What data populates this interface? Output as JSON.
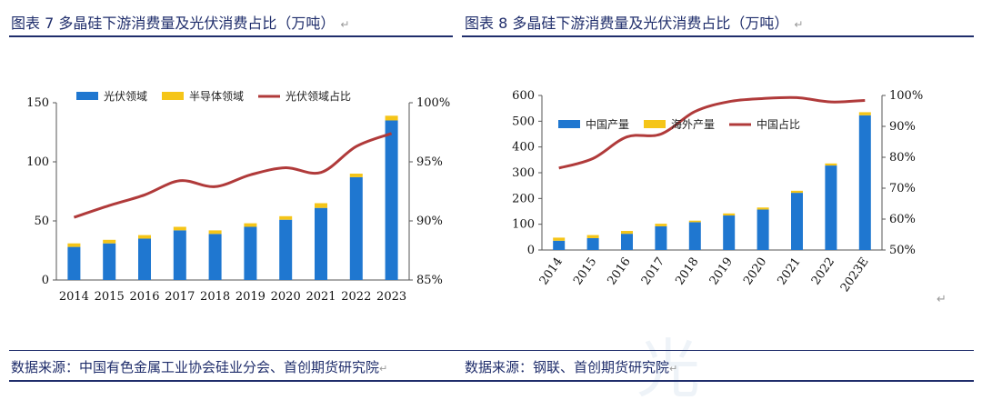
{
  "titles": {
    "left": "图表 7 多晶硅下游消费量及光伏消费占比（万吨）",
    "right": "图表 8 多晶硅下游消费量及光伏消费占比（万吨）",
    "mark": "↵"
  },
  "sources": {
    "left": "数据来源：中国有色金属工业协会硅业分会、首创期货研究院",
    "right": "数据来源：钢联、首创期货研究院"
  },
  "watermark": "光",
  "chart_data": [
    {
      "type": "bar",
      "stacked": true,
      "categories": [
        "2014",
        "2015",
        "2016",
        "2017",
        "2018",
        "2019",
        "2020",
        "2021",
        "2022",
        "2023"
      ],
      "series": [
        {
          "name": "光伏领域",
          "type": "bar",
          "axis": "left",
          "color": "#1f77d0",
          "values": [
            28,
            31,
            35,
            42,
            39,
            45,
            51,
            61,
            87,
            135
          ]
        },
        {
          "name": "半导体领域",
          "type": "bar",
          "axis": "left",
          "color": "#f5c518",
          "values": [
            3,
            3,
            3,
            3,
            3,
            3,
            3,
            4,
            3,
            4
          ]
        },
        {
          "name": "光伏领域占比",
          "type": "line",
          "axis": "right",
          "color": "#b03a3a",
          "values": [
            90.3,
            91.3,
            92.2,
            93.4,
            92.9,
            93.9,
            94.5,
            94.1,
            96.3,
            97.4
          ]
        }
      ],
      "y_left": {
        "min": 0,
        "max": 150,
        "ticks": [
          "0",
          "50",
          "100",
          "150"
        ]
      },
      "y_right": {
        "min": 85,
        "max": 100,
        "ticks": [
          "85%",
          "90%",
          "95%",
          "100%"
        ]
      },
      "legend": "top"
    },
    {
      "type": "bar",
      "stacked": true,
      "categories": [
        "2014",
        "2015",
        "2016",
        "2017",
        "2018",
        "2019",
        "2020",
        "2021",
        "2022",
        "2023E"
      ],
      "series": [
        {
          "name": "中国产量",
          "type": "bar",
          "axis": "left",
          "color": "#1f77d0",
          "values": [
            36,
            46,
            63,
            92,
            108,
            134,
            157,
            222,
            328,
            523
          ]
        },
        {
          "name": "海外产量",
          "type": "bar",
          "axis": "left",
          "color": "#f5c518",
          "values": [
            12,
            12,
            11,
            10,
            6,
            8,
            8,
            8,
            8,
            12
          ]
        },
        {
          "name": "中国占比",
          "type": "line",
          "axis": "right",
          "color": "#b03a3a",
          "values": [
            76.5,
            79.6,
            86.6,
            87.5,
            94.8,
            98.0,
            99.0,
            99.3,
            97.9,
            98.4
          ]
        }
      ],
      "y_left": {
        "min": 0,
        "max": 600,
        "ticks": [
          "0",
          "100",
          "200",
          "300",
          "400",
          "500",
          "600"
        ]
      },
      "y_right": {
        "min": 50,
        "max": 100,
        "ticks": [
          "50%",
          "60%",
          "70%",
          "80%",
          "90%",
          "100%"
        ]
      },
      "legend": "top-left"
    }
  ]
}
